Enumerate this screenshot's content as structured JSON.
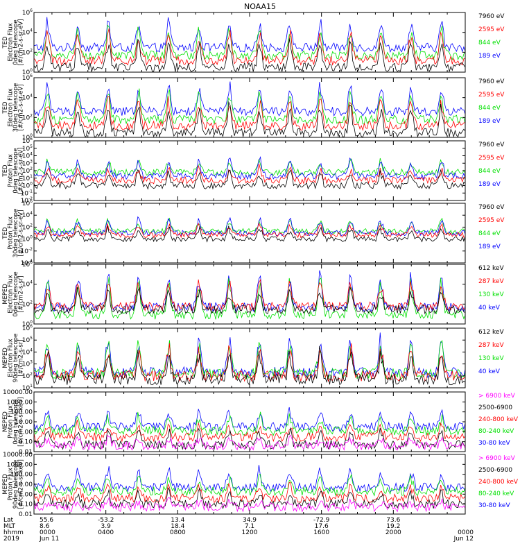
{
  "title": "NOAA15",
  "colors": {
    "black": "#000000",
    "red": "#ff0000",
    "green": "#00e000",
    "blue": "#0000ff",
    "magenta": "#ff00ff"
  },
  "chart_data": [
    {
      "type": "line",
      "ylabel": [
        "TED",
        "Electron Flux",
        "0deg telescope",
        "[#/cm2-s-sr-eV]"
      ],
      "y_log": true,
      "ylim": [
        1,
        1000000
      ],
      "y_ticks": [
        "10^0",
        "10^2",
        "10^4",
        "10^6"
      ],
      "legend": [
        {
          "label": "7960 eV",
          "color": "#000000"
        },
        {
          "label": "2595 eV",
          "color": "#ff0000"
        },
        {
          "label": "844 eV",
          "color": "#00e000"
        },
        {
          "label": "189 eV",
          "color": "#0000ff"
        }
      ],
      "series": [
        {
          "name": "189 eV",
          "color": "#0000ff",
          "baseline": 300,
          "peak": 300000
        },
        {
          "name": "844 eV",
          "color": "#00e000",
          "baseline": 50,
          "peak": 50000
        },
        {
          "name": "2595 eV",
          "color": "#ff0000",
          "baseline": 15,
          "peak": 20000
        },
        {
          "name": "7960 eV",
          "color": "#000000",
          "baseline": 3,
          "peak": 2000
        }
      ]
    },
    {
      "type": "line",
      "ylabel": [
        "TED",
        "Electron Flux",
        "30deg telescope",
        "[#/cm2-s-sr-eV]"
      ],
      "y_log": true,
      "ylim": [
        1,
        1000000
      ],
      "y_ticks": [
        "10^0",
        "10^2",
        "10^4",
        "10^6"
      ],
      "legend": [
        {
          "label": "7960 eV",
          "color": "#000000"
        },
        {
          "label": "2595 eV",
          "color": "#ff0000"
        },
        {
          "label": "844 eV",
          "color": "#00e000"
        },
        {
          "label": "189 eV",
          "color": "#0000ff"
        }
      ],
      "series": [
        {
          "name": "189 eV",
          "color": "#0000ff",
          "baseline": 400,
          "peak": 300000
        },
        {
          "name": "844 eV",
          "color": "#00e000",
          "baseline": 60,
          "peak": 60000
        },
        {
          "name": "2595 eV",
          "color": "#ff0000",
          "baseline": 15,
          "peak": 20000
        },
        {
          "name": "7960 eV",
          "color": "#000000",
          "baseline": 3,
          "peak": 3000
        }
      ]
    },
    {
      "type": "line",
      "ylabel": [
        "TED",
        "Proton Flux",
        "0deg telescope",
        "[#/cm2-s-sr-eV]"
      ],
      "y_log": true,
      "ylim": [
        0.01,
        1000000
      ],
      "y_ticks": [
        "10^-2",
        "10^-1",
        "10^0",
        "10^1",
        "10^2",
        "10^3",
        "10^4",
        "10^5",
        "10^6"
      ],
      "legend": [
        {
          "label": "7960 eV",
          "color": "#000000"
        },
        {
          "label": "2595 eV",
          "color": "#ff0000"
        },
        {
          "label": "844 eV",
          "color": "#00e000"
        },
        {
          "label": "189 eV",
          "color": "#0000ff"
        }
      ],
      "series": [
        {
          "name": "844 eV",
          "color": "#00e000",
          "baseline": 60,
          "peak": 3000
        },
        {
          "name": "189 eV",
          "color": "#0000ff",
          "baseline": 20,
          "peak": 5000
        },
        {
          "name": "2595 eV",
          "color": "#ff0000",
          "baseline": 5,
          "peak": 500
        },
        {
          "name": "7960 eV",
          "color": "#000000",
          "baseline": 1,
          "peak": 200
        }
      ]
    },
    {
      "type": "line",
      "ylabel": [
        "TED",
        "Proton Flux",
        "30deg telescope",
        "[#/cm2-s-sr-eV]"
      ],
      "y_log": true,
      "ylim": [
        0.0001,
        1000000
      ],
      "y_ticks": [
        "10^-4",
        "10^-2",
        "10^0",
        "10^2",
        "10^4",
        "10^6"
      ],
      "legend": [
        {
          "label": "7960 eV",
          "color": "#000000"
        },
        {
          "label": "2595 eV",
          "color": "#ff0000"
        },
        {
          "label": "844 eV",
          "color": "#00e000"
        },
        {
          "label": "189 eV",
          "color": "#0000ff"
        }
      ],
      "series": [
        {
          "name": "844 eV",
          "color": "#00e000",
          "baseline": 20,
          "peak": 2000
        },
        {
          "name": "189 eV",
          "color": "#0000ff",
          "baseline": 10,
          "peak": 5000
        },
        {
          "name": "2595 eV",
          "color": "#ff0000",
          "baseline": 5,
          "peak": 500
        },
        {
          "name": "7960 eV",
          "color": "#000000",
          "baseline": 1,
          "peak": 100
        }
      ]
    },
    {
      "type": "line",
      "ylabel": [
        "MEPED",
        "Electron Flux",
        "0deg telescope",
        "[#/cm2-s-sr]"
      ],
      "y_log": true,
      "ylim": [
        1,
        1000000
      ],
      "y_ticks": [
        "10^0",
        "10^2",
        "10^4",
        "10^6"
      ],
      "legend": [
        {
          "label": "612 keV",
          "color": "#000000"
        },
        {
          "label": "287 keV",
          "color": "#ff0000"
        },
        {
          "label": "130 keV",
          "color": "#00e000"
        },
        {
          "label": "40 keV",
          "color": "#0000ff"
        }
      ],
      "series": [
        {
          "name": "40 keV",
          "color": "#0000ff",
          "baseline": 50,
          "peak": 300000
        },
        {
          "name": "130 keV",
          "color": "#00e000",
          "baseline": 8,
          "peak": 100000
        },
        {
          "name": "287 keV",
          "color": "#ff0000",
          "baseline": 60,
          "peak": 50000
        },
        {
          "name": "612 keV",
          "color": "#000000",
          "baseline": 30,
          "peak": 5000
        }
      ]
    },
    {
      "type": "line",
      "ylabel": [
        "MEPED",
        "Electron Flux",
        "90deg telescope",
        "[#/cm2-s-sr]"
      ],
      "y_log": true,
      "ylim": [
        10,
        1000000
      ],
      "y_ticks": [
        "10^1",
        "10^2",
        "10^3",
        "10^4",
        "10^5",
        "10^6"
      ],
      "legend": [
        {
          "label": "612 keV",
          "color": "#000000"
        },
        {
          "label": "287 keV",
          "color": "#ff0000"
        },
        {
          "label": "130 keV",
          "color": "#00e000"
        },
        {
          "label": "40 keV",
          "color": "#0000ff"
        }
      ],
      "series": [
        {
          "name": "40 keV",
          "color": "#0000ff",
          "baseline": 200,
          "peak": 300000
        },
        {
          "name": "130 keV",
          "color": "#00e000",
          "baseline": 150,
          "peak": 200000
        },
        {
          "name": "287 keV",
          "color": "#ff0000",
          "baseline": 100,
          "peak": 50000
        },
        {
          "name": "612 keV",
          "color": "#000000",
          "baseline": 50,
          "peak": 20000
        }
      ]
    },
    {
      "type": "line",
      "ylabel": [
        "MEPED",
        "Proton Flux",
        "0deg telescope",
        "[#/cm2-s-sr-keV]"
      ],
      "y_log": true,
      "ylim": [
        0.01,
        10000
      ],
      "y_ticks": [
        "0.01",
        "0.10",
        "1.00",
        "10.00",
        "100.00",
        "1000.00",
        "10000.00"
      ],
      "legend": [
        {
          "label": "> 6900 keV",
          "color": "#ff00ff"
        },
        {
          "label": "2500-6900",
          "color": "#000000"
        },
        {
          "label": "240-800 keV",
          "color": "#ff0000"
        },
        {
          "label": "80-240 keV",
          "color": "#00e000"
        },
        {
          "label": "30-80 keV",
          "color": "#0000ff"
        }
      ],
      "series": [
        {
          "name": "30-80 keV",
          "color": "#0000ff",
          "baseline": 3,
          "peak": 300
        },
        {
          "name": "80-240 keV",
          "color": "#00e000",
          "baseline": 1.2,
          "peak": 60
        },
        {
          "name": "240-800 keV",
          "color": "#ff0000",
          "baseline": 0.3,
          "peak": 8
        },
        {
          "name": "2500-6900",
          "color": "#000000",
          "baseline": 0.05,
          "peak": 3
        },
        {
          "name": "> 6900 keV",
          "color": "#ff00ff",
          "baseline": 0.04,
          "peak": 0.3
        }
      ]
    },
    {
      "type": "line",
      "ylabel": [
        "MEPED",
        "Proton Flux",
        "90deg telescope",
        "[#/cm2-s-sr-keV]"
      ],
      "y_log": true,
      "ylim": [
        0.01,
        10000
      ],
      "y_ticks": [
        "0.01",
        "0.10",
        "1.00",
        "10.00",
        "100.00",
        "1000.00",
        "10000.00"
      ],
      "legend": [
        {
          "label": "> 6900 keV",
          "color": "#ff00ff"
        },
        {
          "label": "2500-6900",
          "color": "#000000"
        },
        {
          "label": "240-800 keV",
          "color": "#ff0000"
        },
        {
          "label": "80-240 keV",
          "color": "#00e000"
        },
        {
          "label": "30-80 keV",
          "color": "#0000ff"
        }
      ],
      "series": [
        {
          "name": "30-80 keV",
          "color": "#0000ff",
          "baseline": 5,
          "peak": 500
        },
        {
          "name": "80-240 keV",
          "color": "#00e000",
          "baseline": 2,
          "peak": 80
        },
        {
          "name": "240-800 keV",
          "color": "#ff0000",
          "baseline": 0.4,
          "peak": 10
        },
        {
          "name": "2500-6900",
          "color": "#000000",
          "baseline": 0.1,
          "peak": 3
        },
        {
          "name": "> 6900 keV",
          "color": "#ff00ff",
          "baseline": 0.05,
          "peak": 0.2
        }
      ]
    }
  ],
  "x_axis": {
    "row_labels": [
      "Lat",
      "MLT",
      "hhmm",
      "2019"
    ],
    "ticks": [
      {
        "lat": "55.6",
        "mlt": "8.6",
        "hhmm": "0000",
        "date": "Jun 11"
      },
      {
        "lat": "-53.2",
        "mlt": "3.9",
        "hhmm": "0400",
        "date": ""
      },
      {
        "lat": "13.4",
        "mlt": "18.4",
        "hhmm": "0800",
        "date": ""
      },
      {
        "lat": "34.9",
        "mlt": "7.1",
        "hhmm": "1200",
        "date": ""
      },
      {
        "lat": "-72.9",
        "mlt": "17.6",
        "hhmm": "1600",
        "date": ""
      },
      {
        "lat": "73.6",
        "mlt": "19.2",
        "hhmm": "2000",
        "date": ""
      },
      {
        "lat": "",
        "mlt": "",
        "hhmm": "0000",
        "date": "Jun 12"
      }
    ]
  }
}
